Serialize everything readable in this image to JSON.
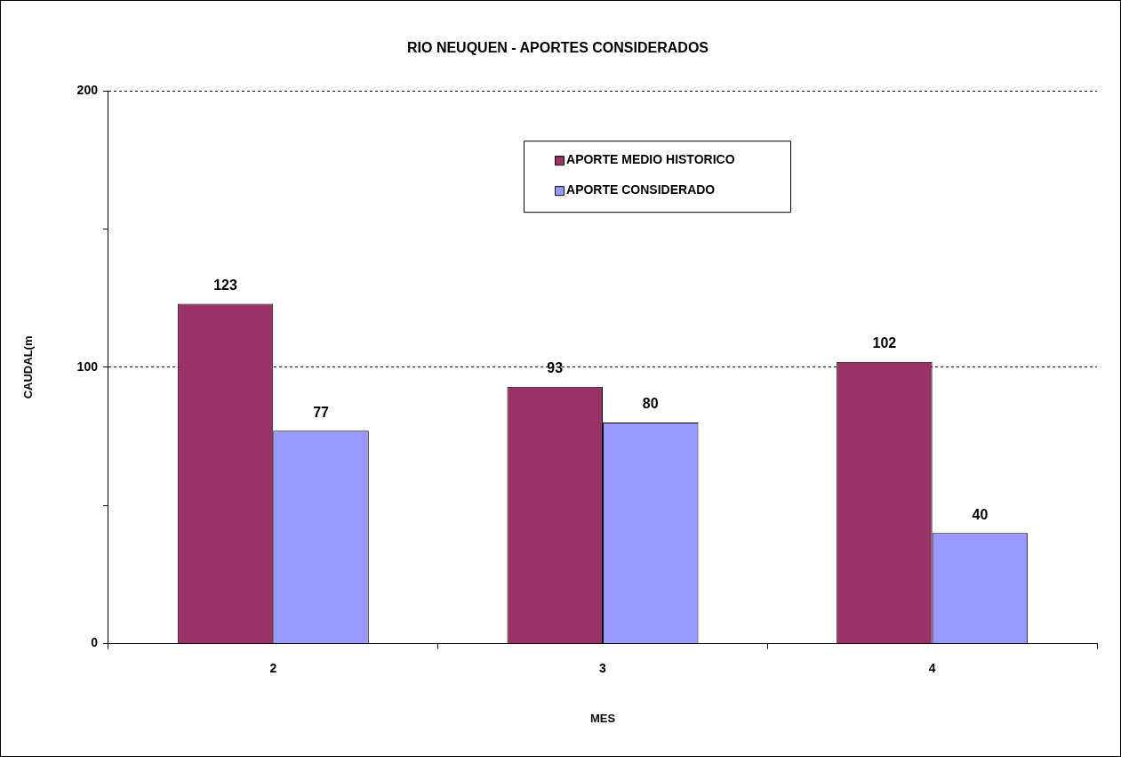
{
  "chart_data": {
    "type": "bar",
    "title": "RIO NEUQUEN - APORTES CONSIDERADOS",
    "xlabel": "MES",
    "ylabel": "CAUDAL(m",
    "categories": [
      "2",
      "3",
      "4"
    ],
    "series": [
      {
        "name": "APORTE MEDIO HISTORICO",
        "color": "#993366",
        "values": [
          123,
          93,
          102
        ]
      },
      {
        "name": "APORTE CONSIDERADO",
        "color": "#9999ff",
        "values": [
          77,
          80,
          40
        ]
      }
    ],
    "ylim": [
      0,
      200
    ],
    "yticks": [
      0,
      {
        "value": 50,
        "label": null
      },
      100,
      {
        "value": 150,
        "label": null
      },
      200
    ],
    "grid": "y",
    "line_style": "dashed",
    "legend": "top",
    "data_labels": true
  }
}
